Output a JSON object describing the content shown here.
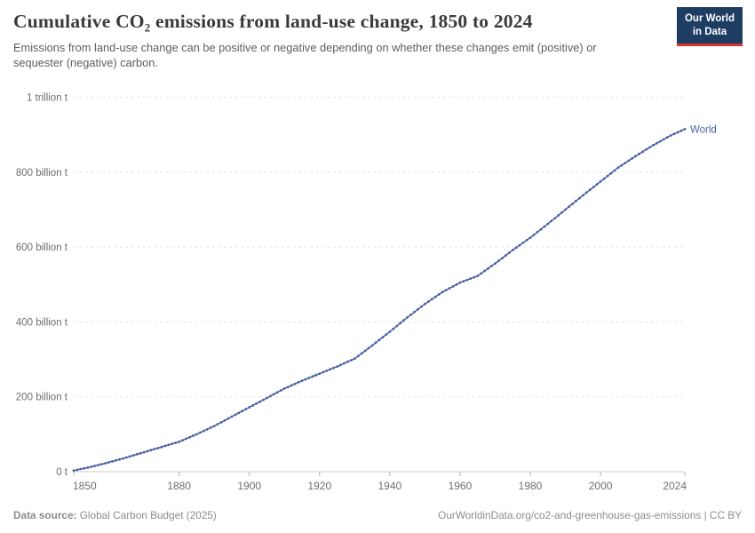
{
  "header": {
    "title": "Cumulative CO₂ emissions from land-use change, 1850 to 2024",
    "subtitle": "Emissions from land-use change can be positive or negative depending on whether these changes emit (positive) or sequester (negative) carbon.",
    "logo": {
      "line1": "Our World",
      "line2": "in Data",
      "bg_color": "#1d3d63",
      "accent_color": "#d8352e"
    }
  },
  "chart_data": {
    "type": "line",
    "title": "Cumulative CO₂ emissions from land-use change, 1850 to 2024",
    "xlabel": "",
    "ylabel": "",
    "unit": "tonnes of CO₂",
    "xlim": [
      1850,
      2024
    ],
    "ylim_billion_t": [
      0,
      1000
    ],
    "grid": "horizontal dashed",
    "x_ticks": [
      1850,
      1880,
      1900,
      1920,
      1940,
      1960,
      1980,
      2000,
      2024
    ],
    "y_ticks": [
      {
        "value": 0,
        "label": "0 t"
      },
      {
        "value": 200,
        "label": "200 billion t"
      },
      {
        "value": 400,
        "label": "400 billion t"
      },
      {
        "value": 600,
        "label": "600 billion t"
      },
      {
        "value": 800,
        "label": "800 billion t"
      },
      {
        "value": 1000,
        "label": "1 trillion t"
      }
    ],
    "series": [
      {
        "name": "World",
        "color": "#4a62a3",
        "marker": "circle-every-year",
        "years": [
          1850,
          1855,
          1860,
          1865,
          1870,
          1875,
          1880,
          1885,
          1890,
          1895,
          1900,
          1905,
          1910,
          1915,
          1920,
          1925,
          1930,
          1935,
          1940,
          1945,
          1950,
          1955,
          1960,
          1965,
          1970,
          1975,
          1980,
          1985,
          1990,
          1995,
          2000,
          2005,
          2010,
          2015,
          2020,
          2024
        ],
        "values_billion_t": [
          3,
          13,
          25,
          38,
          52,
          66,
          80,
          100,
          122,
          147,
          172,
          197,
          222,
          243,
          262,
          281,
          302,
          337,
          374,
          412,
          448,
          480,
          505,
          523,
          556,
          592,
          625,
          662,
          700,
          738,
          775,
          812,
          843,
          872,
          898,
          915
        ]
      }
    ],
    "end_label": "World"
  },
  "footer": {
    "source_label": "Data source:",
    "source_value": "Global Carbon Budget (2025)",
    "attribution": "OurWorldinData.org/co2-and-greenhouse-gas-emissions | CC BY"
  },
  "colors": {
    "gridline": "#e0e0e0",
    "axis_line": "#cfcfcf",
    "tick_mark": "#b5b5b5",
    "tick_label": "#6e6e6e"
  }
}
